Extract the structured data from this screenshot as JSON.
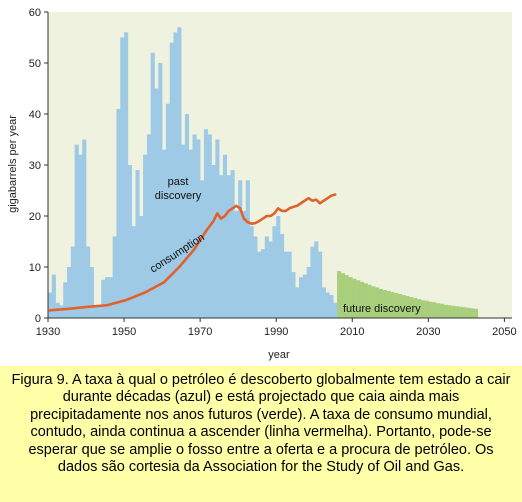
{
  "chart_data": {
    "type": "bar",
    "xlabel": "year",
    "ylabel": "gigabarrels per year",
    "xlim": [
      1930,
      2052
    ],
    "ylim": [
      0,
      60
    ],
    "xticks": [
      "1930",
      "1950",
      "1970",
      "1990",
      "2010",
      "2030",
      "2050"
    ],
    "yticks": [
      "0",
      "10",
      "20",
      "30",
      "40",
      "50",
      "60"
    ],
    "grid": false,
    "background": "#eef2df",
    "annotations": {
      "past_discovery": [
        "past",
        "discovery"
      ],
      "future_discovery": "future discovery",
      "consumption": "consumption"
    },
    "past_discovery": {
      "color": "#9ecae6",
      "years": [
        1930,
        1931,
        1932,
        1933,
        1934,
        1935,
        1936,
        1937,
        1938,
        1939,
        1940,
        1941,
        1942,
        1943,
        1944,
        1945,
        1946,
        1947,
        1948,
        1949,
        1950,
        1951,
        1952,
        1953,
        1954,
        1955,
        1956,
        1957,
        1958,
        1959,
        1960,
        1961,
        1962,
        1963,
        1964,
        1965,
        1966,
        1967,
        1968,
        1969,
        1970,
        1971,
        1972,
        1973,
        1974,
        1975,
        1976,
        1977,
        1978,
        1979,
        1980,
        1981,
        1982,
        1983,
        1984,
        1985,
        1986,
        1987,
        1988,
        1989,
        1990,
        1991,
        1992,
        1993,
        1994,
        1995,
        1996,
        1997,
        1998,
        1999,
        2000,
        2001,
        2002,
        2003,
        2004,
        2005
      ],
      "values": [
        5,
        8.5,
        3,
        2.5,
        7,
        10,
        14,
        34,
        32,
        35,
        14,
        10,
        2.5,
        2.5,
        7.5,
        8,
        8,
        16,
        41,
        55,
        56,
        30,
        18,
        29,
        20,
        32,
        36,
        52,
        45,
        50,
        33,
        42,
        54,
        56,
        57,
        34,
        40,
        33,
        36,
        35,
        27,
        37,
        36,
        30,
        35,
        28,
        32,
        28,
        29,
        21,
        27,
        21,
        27,
        18,
        16,
        13,
        13.5,
        16,
        15,
        18,
        20,
        16.5,
        13,
        13,
        9,
        6,
        8,
        8.5,
        10,
        14,
        15,
        13,
        6,
        5,
        4.5,
        3
      ]
    },
    "future_discovery": {
      "color": "#a9cf7c",
      "years": [
        2006,
        2007,
        2008,
        2009,
        2010,
        2011,
        2012,
        2013,
        2014,
        2015,
        2016,
        2017,
        2018,
        2019,
        2020,
        2021,
        2022,
        2023,
        2024,
        2025,
        2026,
        2027,
        2028,
        2029,
        2030,
        2031,
        2032,
        2033,
        2034,
        2035,
        2036,
        2037,
        2038,
        2039,
        2040,
        2041,
        2042
      ],
      "values": [
        9.2,
        8.8,
        8.4,
        8.0,
        7.7,
        7.4,
        7.1,
        6.8,
        6.5,
        6.2,
        6.0,
        5.7,
        5.5,
        5.3,
        5.1,
        4.9,
        4.7,
        4.5,
        4.3,
        4.1,
        3.9,
        3.7,
        3.5,
        3.4,
        3.2,
        3.1,
        2.9,
        2.8,
        2.6,
        2.5,
        2.4,
        2.3,
        2.2,
        2.1,
        2.0,
        1.9,
        1.8
      ]
    },
    "consumption": {
      "color": "#e0622a",
      "x": [
        1930,
        1935,
        1940,
        1945,
        1950,
        1955,
        1960,
        1964,
        1968,
        1971,
        1973,
        1974,
        1975,
        1976,
        1977,
        1978,
        1979,
        1980,
        1981,
        1982,
        1983,
        1984,
        1985,
        1986,
        1987,
        1988,
        1989,
        1990,
        1991,
        1992,
        1993,
        1994,
        1995,
        1996,
        1997,
        1998,
        1999,
        2000,
        2001,
        2002,
        2003,
        2004,
        2005
      ],
      "y": [
        1.5,
        1.8,
        2.2,
        2.5,
        3.5,
        5,
        7,
        10,
        13.5,
        17,
        19,
        20.5,
        19.5,
        20,
        21,
        21.5,
        22,
        21.5,
        19.5,
        18.8,
        18.5,
        18.6,
        19,
        19.5,
        20,
        20,
        20.5,
        21.5,
        21,
        21,
        21.5,
        21.8,
        22,
        22.5,
        23,
        23.5,
        23,
        23.2,
        22.5,
        23,
        23.5,
        24,
        24.2
      ]
    }
  },
  "caption": "Figura 9. A taxa à qual o petróleo é descoberto globalmente tem estado a cair durante décadas (azul) e está projectado que caia ainda mais precipitadamente nos anos futuros (verde). A taxa de consumo mundial, contudo, ainda continua a ascender (linha vermelha). Portanto, pode-se esperar que se amplie o fosso entre a oferta e a procura de petróleo. Os dados são cortesia da Association for the Study of Oil and Gas."
}
